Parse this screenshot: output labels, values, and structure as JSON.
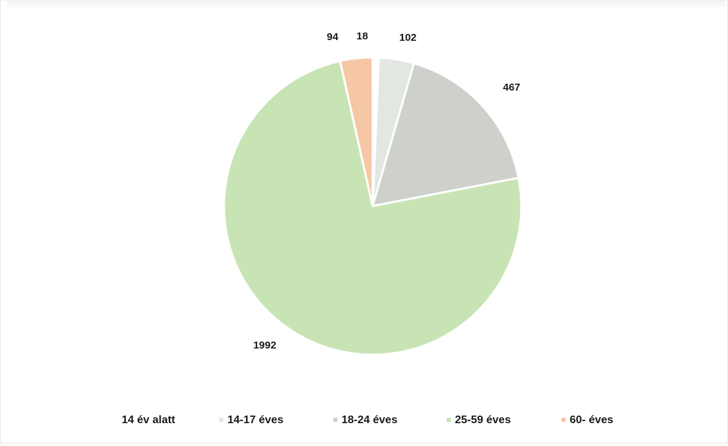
{
  "chart_data": {
    "type": "pie",
    "title": "",
    "slices": [
      {
        "label": "14 év alatt",
        "value": 18,
        "value_label": "18",
        "color": "#ffffff"
      },
      {
        "label": "14-17 éves",
        "value": 102,
        "value_label": "102",
        "color": "#e3e7e2"
      },
      {
        "label": "18-24 éves",
        "value": 467,
        "value_label": "467",
        "color": "#cdd0cb"
      },
      {
        "label": "25-59 éves",
        "value": 1992,
        "value_label": "1992",
        "color": "#c9e4b4"
      },
      {
        "label": "60- éves",
        "value": 94,
        "value_label": "94",
        "color": "#f6c7a4"
      }
    ],
    "legend_position": "bottom",
    "start_angle_deg": 0,
    "direction": "clockwise",
    "slice_border_color": "#ffffff"
  }
}
